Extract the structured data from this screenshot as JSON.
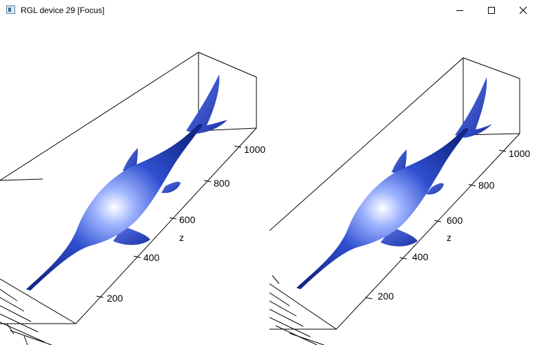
{
  "window": {
    "title": "RGL device 29 [Focus]"
  },
  "icons": {
    "app": "rgl-app-icon",
    "minimize": "minimize-icon",
    "maximize": "maximize-icon",
    "close": "close-icon"
  },
  "colors": {
    "body": "#2a46c6",
    "highlight": "#dce6ff",
    "shadow": "#0e1d78"
  },
  "panels": [
    {
      "axis_label": "z",
      "ticks": [
        "200",
        "400",
        "600",
        "800",
        "1000"
      ]
    },
    {
      "axis_label": "z",
      "ticks": [
        "200",
        "400",
        "600",
        "800",
        "1000"
      ]
    }
  ]
}
